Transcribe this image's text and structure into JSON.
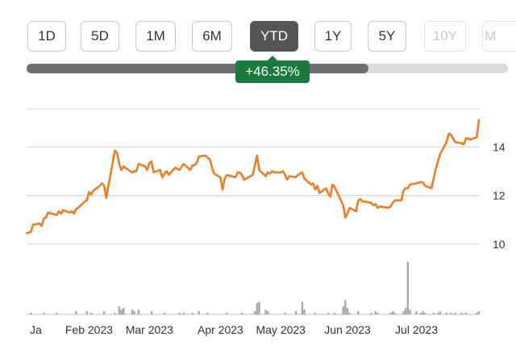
{
  "range_selector": {
    "buttons": [
      {
        "label": "1D",
        "state": "normal"
      },
      {
        "label": "5D",
        "state": "normal"
      },
      {
        "label": "1M",
        "state": "normal"
      },
      {
        "label": "6M",
        "state": "normal"
      },
      {
        "label": "YTD",
        "state": "active"
      },
      {
        "label": "1Y",
        "state": "normal"
      },
      {
        "label": "5Y",
        "state": "normal"
      },
      {
        "label": "10Y",
        "state": "faded"
      },
      {
        "label": "M",
        "state": "faded"
      }
    ],
    "slider_progress": 0.71,
    "change_badge": "+46.35%"
  },
  "colors": {
    "price_line": "#f47c20",
    "volume_bar": "#a8a8a8",
    "gridline": "#d0d0d0",
    "badge_bg": "#1a7a3e",
    "active_button": "#555555"
  },
  "chart_data": {
    "type": "line",
    "title": "",
    "xlabel": "",
    "ylabel": "",
    "ylim": [
      9.6,
      15.6
    ],
    "y_ticks": [
      10,
      12,
      14
    ],
    "y_tick_labels": [
      "10",
      "12",
      "14"
    ],
    "x_tick_labels": [
      {
        "label": "Ja",
        "date": "2023-01-03"
      },
      {
        "label": "Feb 2023",
        "date": "2023-02-01"
      },
      {
        "label": "Mar 2023",
        "date": "2023-03-01"
      },
      {
        "label": "Apr 2023",
        "date": "2023-04-03"
      },
      {
        "label": "May 2023",
        "date": "2023-05-01"
      },
      {
        "label": "Jun 2023",
        "date": "2023-06-01"
      },
      {
        "label": "Jul 2023",
        "date": "2023-07-03"
      }
    ],
    "series": [
      {
        "values": [
          [
            "2023-01-03",
            10.45
          ],
          [
            "2023-01-05",
            10.5
          ],
          [
            "2023-01-06",
            10.8
          ],
          [
            "2023-01-09",
            10.85
          ],
          [
            "2023-01-10",
            10.75
          ],
          [
            "2023-01-11",
            11.05
          ],
          [
            "2023-01-12",
            11.1
          ],
          [
            "2023-01-13",
            11.3
          ],
          [
            "2023-01-17",
            11.2
          ],
          [
            "2023-01-18",
            11.35
          ],
          [
            "2023-01-19",
            11.25
          ],
          [
            "2023-01-20",
            11.4
          ],
          [
            "2023-01-23",
            11.3
          ],
          [
            "2023-01-24",
            11.35
          ],
          [
            "2023-01-25",
            11.25
          ],
          [
            "2023-01-26",
            11.45
          ],
          [
            "2023-01-27",
            11.5
          ],
          [
            "2023-01-30",
            11.75
          ],
          [
            "2023-01-31",
            11.8
          ],
          [
            "2023-02-01",
            12.15
          ],
          [
            "2023-02-02",
            12.05
          ],
          [
            "2023-02-03",
            12.2
          ],
          [
            "2023-02-06",
            12.4
          ],
          [
            "2023-02-07",
            12.5
          ],
          [
            "2023-02-08",
            12.4
          ],
          [
            "2023-02-09",
            11.9
          ],
          [
            "2023-02-10",
            12.4
          ],
          [
            "2023-02-13",
            13.85
          ],
          [
            "2023-02-14",
            13.75
          ],
          [
            "2023-02-15",
            13.3
          ],
          [
            "2023-02-16",
            13.05
          ],
          [
            "2023-02-17",
            13.2
          ],
          [
            "2023-02-21",
            12.95
          ],
          [
            "2023-02-22",
            13.0
          ],
          [
            "2023-02-23",
            13.0
          ],
          [
            "2023-02-24",
            13.3
          ],
          [
            "2023-02-27",
            13.2
          ],
          [
            "2023-02-28",
            13.05
          ],
          [
            "2023-03-01",
            13.35
          ],
          [
            "2023-03-02",
            13.4
          ],
          [
            "2023-03-03",
            12.95
          ],
          [
            "2023-03-06",
            13.05
          ],
          [
            "2023-03-07",
            12.75
          ],
          [
            "2023-03-08",
            12.9
          ],
          [
            "2023-03-09",
            13.0
          ],
          [
            "2023-03-10",
            12.85
          ],
          [
            "2023-03-13",
            13.15
          ],
          [
            "2023-03-14",
            13.1
          ],
          [
            "2023-03-15",
            13.05
          ],
          [
            "2023-03-16",
            13.2
          ],
          [
            "2023-03-17",
            13.3
          ],
          [
            "2023-03-20",
            13.05
          ],
          [
            "2023-03-21",
            13.25
          ],
          [
            "2023-03-22",
            13.25
          ],
          [
            "2023-03-23",
            13.35
          ],
          [
            "2023-03-24",
            13.6
          ],
          [
            "2023-03-27",
            13.65
          ],
          [
            "2023-03-28",
            13.55
          ],
          [
            "2023-03-29",
            13.5
          ],
          [
            "2023-03-30",
            13.2
          ],
          [
            "2023-03-31",
            12.9
          ],
          [
            "2023-04-03",
            12.75
          ],
          [
            "2023-04-04",
            12.25
          ],
          [
            "2023-04-05",
            12.7
          ],
          [
            "2023-04-06",
            12.85
          ],
          [
            "2023-04-10",
            12.75
          ],
          [
            "2023-04-11",
            12.95
          ],
          [
            "2023-04-12",
            12.95
          ],
          [
            "2023-04-13",
            12.85
          ],
          [
            "2023-04-14",
            12.65
          ],
          [
            "2023-04-17",
            12.8
          ],
          [
            "2023-04-18",
            12.85
          ],
          [
            "2023-04-19",
            13.25
          ],
          [
            "2023-04-20",
            13.65
          ],
          [
            "2023-04-21",
            13.05
          ],
          [
            "2023-04-24",
            12.8
          ],
          [
            "2023-04-25",
            12.95
          ],
          [
            "2023-04-26",
            12.9
          ],
          [
            "2023-04-27",
            13.0
          ],
          [
            "2023-04-28",
            12.95
          ],
          [
            "2023-05-01",
            12.95
          ],
          [
            "2023-05-02",
            13.0
          ],
          [
            "2023-05-03",
            12.85
          ],
          [
            "2023-05-04",
            12.65
          ],
          [
            "2023-05-05",
            12.8
          ],
          [
            "2023-05-08",
            12.75
          ],
          [
            "2023-05-09",
            12.85
          ],
          [
            "2023-05-10",
            12.9
          ],
          [
            "2023-05-11",
            12.95
          ],
          [
            "2023-05-12",
            12.7
          ],
          [
            "2023-05-15",
            12.45
          ],
          [
            "2023-05-16",
            12.5
          ],
          [
            "2023-05-17",
            12.25
          ],
          [
            "2023-05-18",
            12.4
          ],
          [
            "2023-05-19",
            12.1
          ],
          [
            "2023-05-22",
            12.3
          ],
          [
            "2023-05-23",
            12.1
          ],
          [
            "2023-05-24",
            11.95
          ],
          [
            "2023-05-25",
            12.45
          ],
          [
            "2023-05-26",
            12.35
          ],
          [
            "2023-05-30",
            11.6
          ],
          [
            "2023-05-31",
            11.1
          ],
          [
            "2023-06-01",
            11.25
          ],
          [
            "2023-06-02",
            11.5
          ],
          [
            "2023-06-05",
            11.35
          ],
          [
            "2023-06-06",
            11.8
          ],
          [
            "2023-06-07",
            11.85
          ],
          [
            "2023-06-08",
            11.75
          ],
          [
            "2023-06-09",
            11.75
          ],
          [
            "2023-06-12",
            11.7
          ],
          [
            "2023-06-13",
            11.6
          ],
          [
            "2023-06-14",
            11.65
          ],
          [
            "2023-06-15",
            11.5
          ],
          [
            "2023-06-16",
            11.55
          ],
          [
            "2023-06-20",
            11.5
          ],
          [
            "2023-06-21",
            11.55
          ],
          [
            "2023-06-22",
            11.7
          ],
          [
            "2023-06-23",
            11.8
          ],
          [
            "2023-06-26",
            11.8
          ],
          [
            "2023-06-27",
            12.2
          ],
          [
            "2023-06-28",
            12.3
          ],
          [
            "2023-06-29",
            12.3
          ],
          [
            "2023-06-30",
            12.45
          ],
          [
            "2023-07-03",
            12.5
          ],
          [
            "2023-07-05",
            12.55
          ],
          [
            "2023-07-06",
            12.55
          ],
          [
            "2023-07-07",
            12.4
          ],
          [
            "2023-07-10",
            12.3
          ],
          [
            "2023-07-11",
            12.7
          ],
          [
            "2023-07-12",
            13.1
          ],
          [
            "2023-07-13",
            13.4
          ],
          [
            "2023-07-14",
            13.7
          ],
          [
            "2023-07-17",
            14.2
          ],
          [
            "2023-07-18",
            14.55
          ],
          [
            "2023-07-19",
            14.5
          ],
          [
            "2023-07-20",
            14.35
          ],
          [
            "2023-07-21",
            14.2
          ],
          [
            "2023-07-24",
            14.15
          ],
          [
            "2023-07-25",
            14.1
          ],
          [
            "2023-07-26",
            14.35
          ],
          [
            "2023-07-27",
            14.35
          ],
          [
            "2023-07-28",
            14.3
          ],
          [
            "2023-07-31",
            14.4
          ],
          [
            "2023-08-01",
            15.1
          ]
        ]
      },
      {
        "values": [
          [
            "2023-01-05",
            1
          ],
          [
            "2023-01-11",
            1
          ],
          [
            "2023-01-17",
            1
          ],
          [
            "2023-01-26",
            2
          ],
          [
            "2023-01-31",
            2
          ],
          [
            "2023-02-02",
            1
          ],
          [
            "2023-02-08",
            2
          ],
          [
            "2023-02-13",
            1
          ],
          [
            "2023-02-15",
            5
          ],
          [
            "2023-02-16",
            3
          ],
          [
            "2023-02-17",
            4
          ],
          [
            "2023-02-21",
            3
          ],
          [
            "2023-02-22",
            2
          ],
          [
            "2023-02-24",
            3
          ],
          [
            "2023-03-02",
            2
          ],
          [
            "2023-03-08",
            1
          ],
          [
            "2023-03-15",
            1
          ],
          [
            "2023-03-17",
            1
          ],
          [
            "2023-03-21",
            1
          ],
          [
            "2023-03-24",
            2
          ],
          [
            "2023-03-28",
            1
          ],
          [
            "2023-04-06",
            1
          ],
          [
            "2023-04-13",
            1
          ],
          [
            "2023-04-19",
            2
          ],
          [
            "2023-04-20",
            7
          ],
          [
            "2023-04-21",
            8
          ],
          [
            "2023-04-24",
            3
          ],
          [
            "2023-04-25",
            2
          ],
          [
            "2023-05-03",
            1
          ],
          [
            "2023-05-08",
            2
          ],
          [
            "2023-05-11",
            8
          ],
          [
            "2023-05-12",
            3
          ],
          [
            "2023-05-17",
            1
          ],
          [
            "2023-05-23",
            1
          ],
          [
            "2023-05-26",
            1
          ],
          [
            "2023-05-30",
            5
          ],
          [
            "2023-05-31",
            9
          ],
          [
            "2023-06-01",
            4
          ],
          [
            "2023-06-02",
            1
          ],
          [
            "2023-06-06",
            2
          ],
          [
            "2023-06-12",
            1
          ],
          [
            "2023-06-14",
            2
          ],
          [
            "2023-06-15",
            1
          ],
          [
            "2023-06-21",
            1
          ],
          [
            "2023-06-22",
            2
          ],
          [
            "2023-06-23",
            1
          ],
          [
            "2023-06-27",
            2
          ],
          [
            "2023-06-28",
            4
          ],
          [
            "2023-06-29",
            33
          ],
          [
            "2023-06-30",
            3
          ],
          [
            "2023-07-03",
            2
          ],
          [
            "2023-07-05",
            1
          ],
          [
            "2023-07-06",
            2
          ],
          [
            "2023-07-07",
            1
          ],
          [
            "2023-07-11",
            1
          ],
          [
            "2023-07-13",
            1
          ],
          [
            "2023-07-14",
            2
          ],
          [
            "2023-07-17",
            1
          ],
          [
            "2023-07-19",
            1
          ],
          [
            "2023-07-21",
            1
          ],
          [
            "2023-07-24",
            1
          ],
          [
            "2023-07-26",
            1
          ],
          [
            "2023-07-31",
            1
          ],
          [
            "2023-08-01",
            2
          ]
        ]
      }
    ],
    "grid": true,
    "y_axis_position": "right"
  }
}
